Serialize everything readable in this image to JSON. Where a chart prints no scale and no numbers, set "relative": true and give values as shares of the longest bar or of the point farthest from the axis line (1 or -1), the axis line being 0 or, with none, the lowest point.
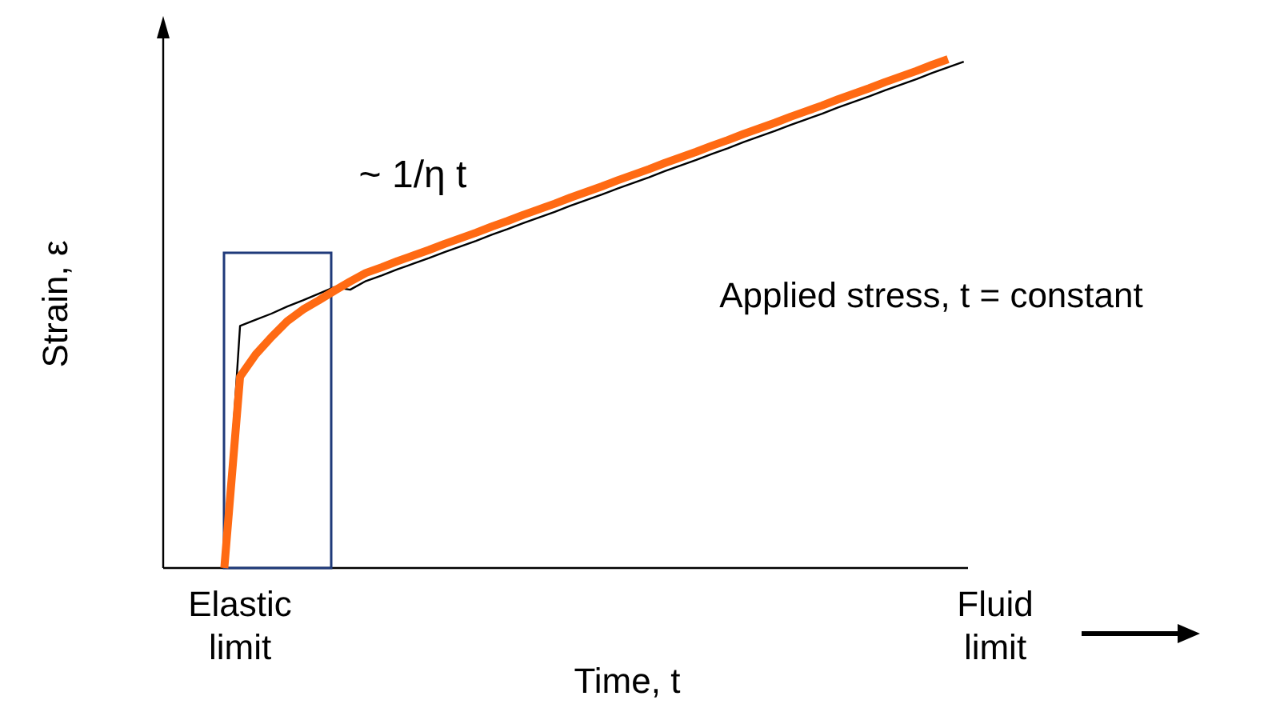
{
  "chart_data": {
    "type": "line",
    "relative": true,
    "xlabel": "Time, t",
    "ylabel": "Strain, ε",
    "annotations": [
      "~ 1/η t",
      "Applied stress, t = constant"
    ],
    "categories": [
      null,
      "Elastic limit",
      null,
      null,
      null,
      null,
      null,
      null,
      null,
      null,
      null,
      null,
      null,
      null,
      null,
      null,
      null,
      null,
      null,
      null,
      null,
      null,
      null,
      null,
      null,
      null,
      null,
      null,
      null,
      null,
      null,
      null,
      null,
      null,
      null,
      null,
      null,
      null,
      null,
      null,
      null,
      null,
      null,
      null,
      null,
      null,
      null,
      null,
      null,
      "Fluid limit",
      null
    ],
    "series": [
      {
        "color": "#000000",
        "values": [
          0,
          0.476,
          0.488,
          0.5,
          0.514,
          0.526,
          0.539,
          0.552,
          0.547,
          0.564,
          0.575,
          0.587,
          0.598,
          0.609,
          0.621,
          0.632,
          0.643,
          0.655,
          0.666,
          0.678,
          0.689,
          0.7,
          0.712,
          0.723,
          0.734,
          0.746,
          0.757,
          0.768,
          0.78,
          0.791,
          0.802,
          0.814,
          0.825,
          0.837,
          0.848,
          0.859,
          0.871,
          0.882,
          0.893,
          0.905,
          0.916,
          0.927,
          0.939,
          0.95,
          0.961,
          0.973,
          0.984,
          0.995,
          null,
          null,
          null
        ]
      },
      {
        "color": "#ff6a13",
        "values": [
          0,
          0.376,
          0.42,
          0.454,
          0.485,
          0.508,
          0.526,
          0.545,
          0.563,
          0.58,
          0.591,
          0.603,
          0.614,
          0.625,
          0.637,
          0.648,
          0.659,
          0.671,
          0.682,
          0.694,
          0.705,
          0.716,
          0.728,
          0.739,
          0.75,
          0.762,
          0.773,
          0.784,
          0.796,
          0.807,
          0.818,
          0.83,
          0.841,
          0.853,
          0.864,
          0.875,
          0.887,
          0.898,
          0.909,
          0.921,
          0.932,
          0.943,
          0.955,
          0.966,
          0.977,
          0.989,
          1,
          null,
          null,
          null,
          null
        ]
      }
    ],
    "marker": "none",
    "line_style": "solid"
  }
}
